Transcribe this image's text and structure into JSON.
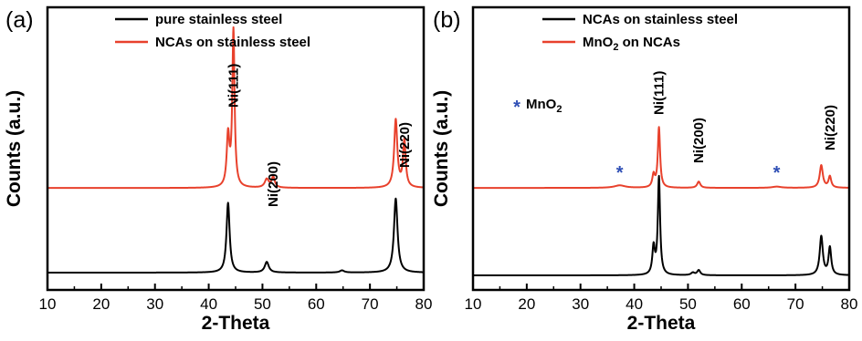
{
  "chart_data": [
    {
      "panel_label": "(a)",
      "type": "line",
      "xlabel": "2-Theta",
      "ylabel": "Counts (a.u.)",
      "xlim": [
        10,
        80
      ],
      "xticks": [
        "10",
        "20",
        "30",
        "40",
        "50",
        "60",
        "70",
        "80"
      ],
      "y_ticks_shown": false,
      "legend_position": "top-center",
      "colors": {
        "black": "#000000",
        "red": "#e8412c"
      },
      "series": [
        {
          "name": "pure stainless steel",
          "color": "#000000",
          "baseline": 0.0,
          "peaks": [
            {
              "x": 43.6,
              "height": 0.33,
              "width": 0.35
            },
            {
              "x": 50.8,
              "height": 0.05,
              "width": 0.45
            },
            {
              "x": 64.8,
              "height": 0.01,
              "width": 0.5
            },
            {
              "x": 74.8,
              "height": 0.35,
              "width": 0.4
            }
          ]
        },
        {
          "name": "NCAs on stainless steel",
          "color": "#e8412c",
          "baseline": 0.4,
          "peaks": [
            {
              "x": 43.6,
              "height": 0.24,
              "width": 0.3
            },
            {
              "x": 44.6,
              "height": 0.74,
              "width": 0.25
            },
            {
              "x": 50.8,
              "height": 0.04,
              "width": 0.45
            },
            {
              "x": 52.0,
              "height": 0.05,
              "width": 0.35
            },
            {
              "x": 74.8,
              "height": 0.32,
              "width": 0.35
            },
            {
              "x": 76.4,
              "height": 0.22,
              "width": 0.3
            }
          ]
        }
      ],
      "annotations": [
        {
          "text": "Ni(111)",
          "x": 44.6
        },
        {
          "text": "Ni(200)",
          "x": 52.0
        },
        {
          "text": "Ni(220)",
          "x": 76.4
        }
      ]
    },
    {
      "panel_label": "(b)",
      "type": "line",
      "xlabel": "2-Theta",
      "ylabel": "Counts (a.u.)",
      "xlim": [
        10,
        80
      ],
      "xticks": [
        "10",
        "20",
        "30",
        "40",
        "50",
        "60",
        "70",
        "80"
      ],
      "y_ticks_shown": false,
      "legend_position": "top-center",
      "colors": {
        "black": "#000000",
        "red": "#e8412c",
        "marker": "#2f4fb5"
      },
      "series": [
        {
          "name": "NCAs on stainless steel",
          "color": "#000000",
          "baseline": 0.0,
          "peaks": [
            {
              "x": 43.6,
              "height": 0.22,
              "width": 0.28
            },
            {
              "x": 44.6,
              "height": 0.78,
              "width": 0.25
            },
            {
              "x": 50.9,
              "height": 0.02,
              "width": 0.4
            },
            {
              "x": 52.0,
              "height": 0.04,
              "width": 0.35
            },
            {
              "x": 74.8,
              "height": 0.31,
              "width": 0.35
            },
            {
              "x": 76.4,
              "height": 0.22,
              "width": 0.3
            }
          ]
        },
        {
          "name": "MnO2 on NCAs",
          "color": "#e8412c",
          "baseline": 0.7,
          "peaks": [
            {
              "x": 37.3,
              "height": 0.02,
              "width": 1.2
            },
            {
              "x": 43.6,
              "height": 0.1,
              "width": 0.28
            },
            {
              "x": 44.6,
              "height": 0.48,
              "width": 0.25
            },
            {
              "x": 52.0,
              "height": 0.05,
              "width": 0.35
            },
            {
              "x": 66.5,
              "height": 0.01,
              "width": 1.0
            },
            {
              "x": 74.8,
              "height": 0.18,
              "width": 0.35
            },
            {
              "x": 76.4,
              "height": 0.09,
              "width": 0.3
            }
          ]
        }
      ],
      "annotations": [
        {
          "text": "Ni(111)",
          "x": 44.6
        },
        {
          "text": "Ni(200)",
          "x": 52.0
        },
        {
          "text": "Ni(220)",
          "x": 76.4
        }
      ],
      "markers": [
        {
          "symbol": "*",
          "x": 37.3
        },
        {
          "symbol": "*",
          "x": 66.5
        }
      ],
      "marker_legend": {
        "symbol": "*",
        "label": "MnO2"
      }
    }
  ]
}
